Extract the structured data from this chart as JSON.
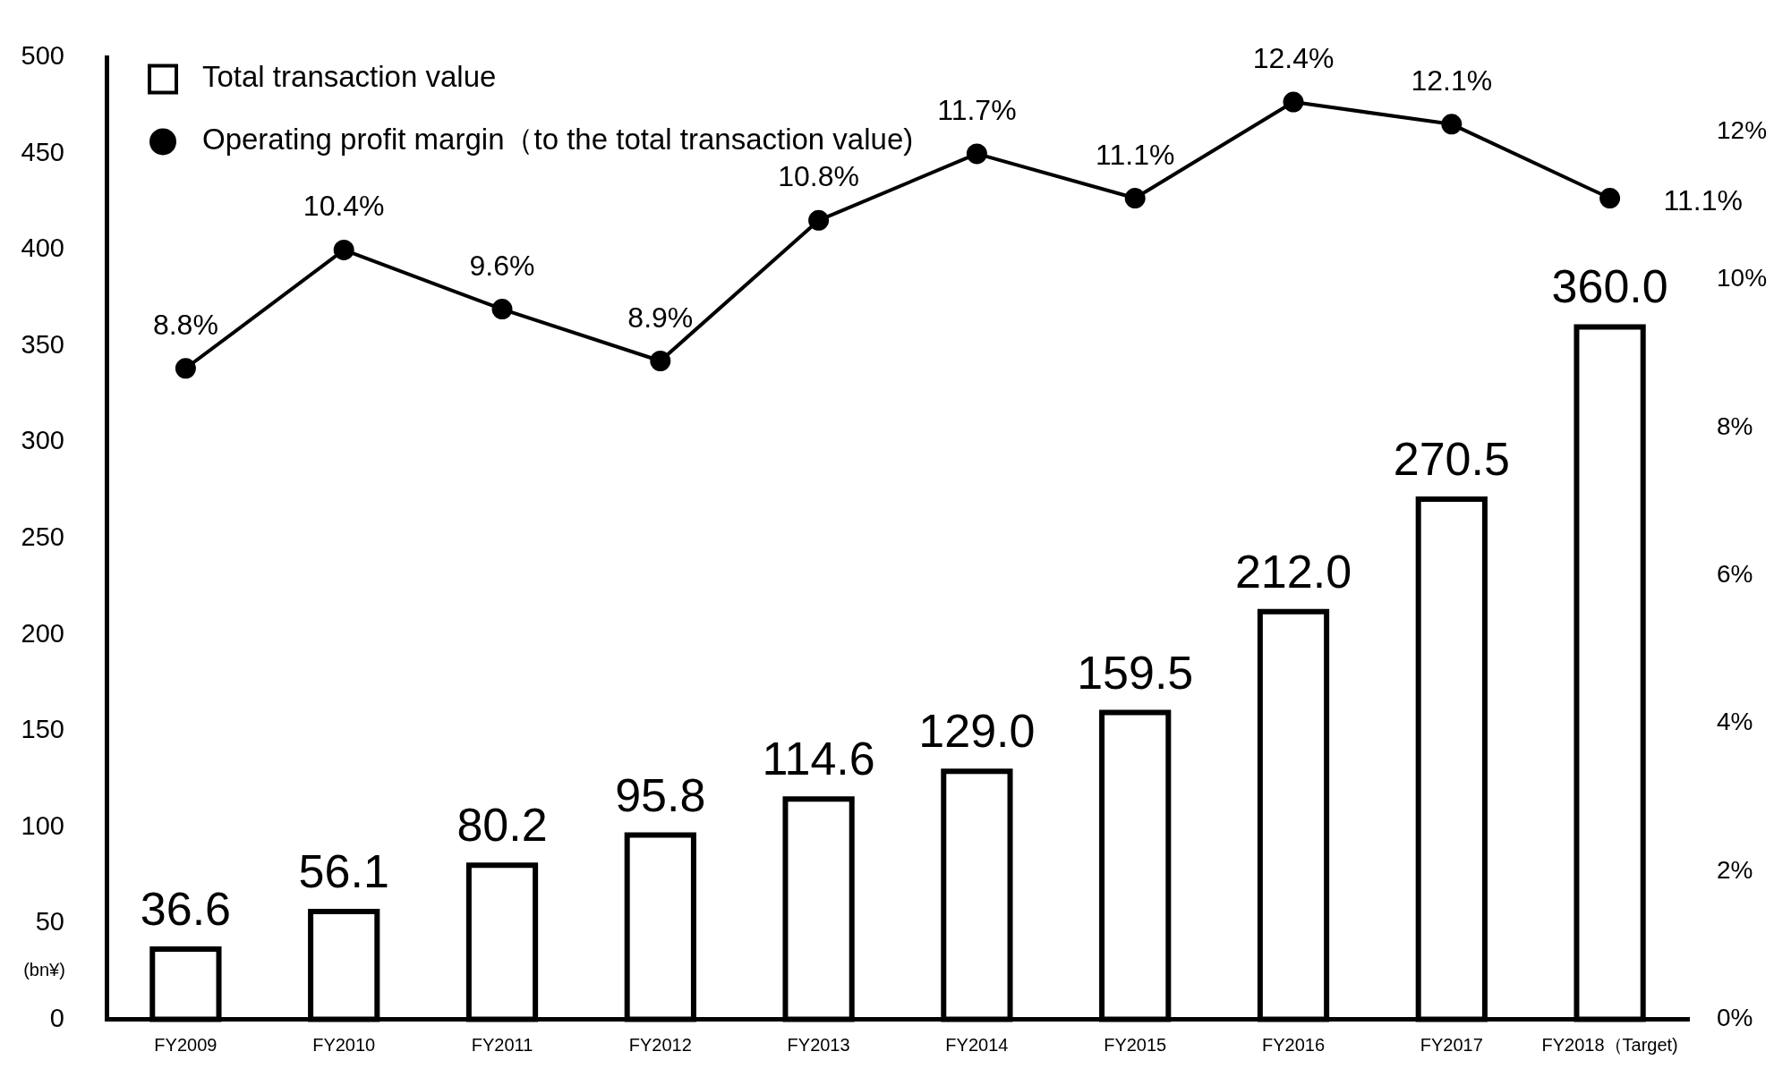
{
  "chart_data": {
    "type": "bar",
    "categories": [
      "FY2009",
      "FY2010",
      "FY2011",
      "FY2012",
      "FY2013",
      "FY2014",
      "FY2015",
      "FY2016",
      "FY2017",
      "FY2018（Target)"
    ],
    "series": [
      {
        "name": "Total transaction value",
        "color": "#000000",
        "values": [
          36.6,
          56.1,
          80.2,
          95.8,
          114.6,
          129.0,
          159.5,
          212.0,
          270.5,
          360.0
        ],
        "value_labels": [
          "36.6",
          "56.1",
          "80.2",
          "95.8",
          "114.6",
          "129.0",
          "159.5",
          "212.0",
          "270.5",
          "360.0"
        ]
      },
      {
        "name": "Operating profit margin（to the total transaction value)",
        "type": "line",
        "axis": "y2",
        "color": "#000000",
        "marker": "circle",
        "values": [
          8.8,
          10.4,
          9.6,
          8.9,
          10.8,
          11.7,
          11.1,
          12.4,
          12.1,
          11.1
        ],
        "value_labels": [
          "8.8%",
          "10.4%",
          "9.6%",
          "8.9%",
          "10.8%",
          "11.7%",
          "11.1%",
          "12.4%",
          "12.1%",
          "11.1%"
        ]
      }
    ],
    "ylabel": "(bn¥)",
    "ylim": [
      0,
      500
    ],
    "yticks": [
      0,
      50,
      100,
      150,
      200,
      250,
      300,
      350,
      400,
      450,
      500
    ],
    "y2lim": [
      0,
      13
    ],
    "y2ticks": [
      {
        "value": 0,
        "label": "0%"
      },
      {
        "value": 2,
        "label": "2%"
      },
      {
        "value": 4,
        "label": "4%"
      },
      {
        "value": 6,
        "label": "6%"
      },
      {
        "value": 8,
        "label": "8%"
      },
      {
        "value": 10,
        "label": "10%"
      },
      {
        "value": 12,
        "label": "12%"
      }
    ],
    "legend": "top left"
  }
}
